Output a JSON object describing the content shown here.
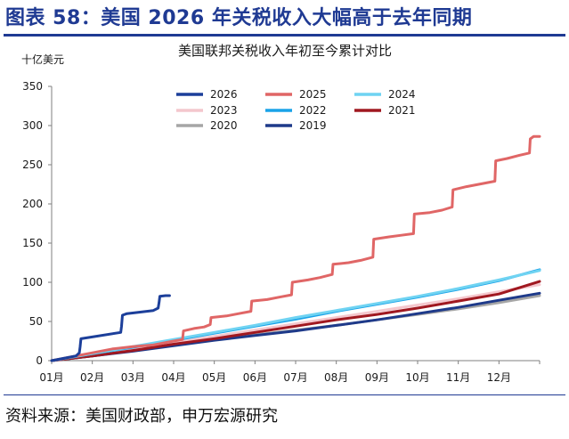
{
  "figure_title": "图表 58：美国 2026 年关税收入大幅高于去年同期",
  "source": "资料来源：美国财政部，申万宏源研究",
  "colors": {
    "brand": "#1f3a93",
    "s2026": "#1c3f9a",
    "s2025": "#e06666",
    "s2024": "#6fd3f2",
    "s2023": "#f4c7cd",
    "s2022": "#1aa3e8",
    "s2021": "#a01820",
    "s2020": "#a6a6a6",
    "s2019": "#1e3a8a"
  },
  "chart_data": {
    "type": "line",
    "title": "美国联邦关税收入年初至今累计对比",
    "ylabel": "十亿美元",
    "xlabel": "",
    "ylim": [
      0,
      350
    ],
    "yticks": [
      0,
      50,
      100,
      150,
      200,
      250,
      300,
      350
    ],
    "categories": [
      "01月",
      "02月",
      "03月",
      "04月",
      "05月",
      "06月",
      "07月",
      "08月",
      "09月",
      "10月",
      "11月",
      "12月"
    ],
    "x_domain": [
      1,
      13
    ],
    "grid": false,
    "legend_position": "top-center",
    "series": [
      {
        "name": "2026",
        "x": [
          1,
          1.3,
          1.6,
          1.68,
          1.7,
          1.72,
          2.7,
          2.72,
          2.74,
          2.85,
          3.2,
          3.5,
          3.62,
          3.64,
          3.66,
          3.8,
          3.9
        ],
        "y": [
          0,
          3,
          6,
          10,
          18,
          28,
          36,
          44,
          58,
          60,
          62,
          64,
          67,
          74,
          82,
          83,
          83
        ]
      },
      {
        "name": "2025",
        "x": [
          1,
          1.5,
          2,
          2.5,
          3,
          3.5,
          4,
          4.22,
          4.24,
          4.5,
          4.75,
          4.9,
          4.92,
          5.3,
          5.6,
          5.9,
          5.92,
          6.3,
          6.6,
          6.9,
          6.92,
          7.3,
          7.6,
          7.9,
          7.92,
          8.3,
          8.6,
          8.9,
          8.92,
          9.3,
          9.6,
          9.9,
          9.92,
          10.3,
          10.6,
          10.85,
          10.87,
          11.2,
          11.6,
          11.9,
          11.92,
          12.2,
          12.5,
          12.75,
          12.77,
          12.85,
          13
        ],
        "y": [
          0,
          5,
          10,
          15,
          18,
          20,
          25,
          27,
          38,
          41,
          43,
          46,
          55,
          57,
          60,
          63,
          76,
          78,
          81,
          84,
          100,
          103,
          106,
          110,
          123,
          125,
          128,
          132,
          155,
          158,
          160,
          162,
          187,
          189,
          192,
          196,
          218,
          222,
          226,
          229,
          255,
          258,
          262,
          265,
          283,
          286,
          286
        ]
      },
      {
        "name": "2024",
        "x": [
          1,
          2,
          3,
          4,
          5,
          6,
          7,
          8,
          9,
          10,
          11,
          12,
          13
        ],
        "y": [
          0,
          9,
          18,
          27,
          36,
          45,
          55,
          64,
          73,
          82,
          92,
          103,
          115
        ]
      },
      {
        "name": "2023",
        "x": [
          1,
          2,
          3,
          4,
          5,
          6,
          7,
          8,
          9,
          10,
          11,
          12,
          13
        ],
        "y": [
          0,
          7,
          15,
          23,
          31,
          39,
          47,
          55,
          63,
          71,
          79,
          88,
          97
        ]
      },
      {
        "name": "2022",
        "x": [
          1,
          2,
          3,
          4,
          5,
          6,
          7,
          8,
          9,
          10,
          11,
          12,
          13
        ],
        "y": [
          0,
          9,
          17,
          26,
          35,
          44,
          53,
          63,
          72,
          81,
          91,
          102,
          116
        ]
      },
      {
        "name": "2021",
        "x": [
          1,
          2,
          3,
          4,
          5,
          6,
          7,
          8,
          9,
          10,
          11,
          12,
          13
        ],
        "y": [
          0,
          6,
          13,
          21,
          28,
          36,
          44,
          52,
          59,
          67,
          76,
          85,
          101
        ]
      },
      {
        "name": "2020",
        "x": [
          1,
          2,
          3,
          4,
          5,
          6,
          7,
          8,
          9,
          10,
          11,
          12,
          13
        ],
        "y": [
          0,
          6,
          13,
          20,
          27,
          33,
          39,
          45,
          52,
          59,
          66,
          74,
          83
        ]
      },
      {
        "name": "2019",
        "x": [
          1,
          2,
          3,
          4,
          5,
          6,
          7,
          8,
          9,
          10,
          11,
          12,
          13
        ],
        "y": [
          0,
          6,
          12,
          19,
          26,
          32,
          38,
          45,
          52,
          60,
          68,
          77,
          86
        ]
      }
    ]
  }
}
